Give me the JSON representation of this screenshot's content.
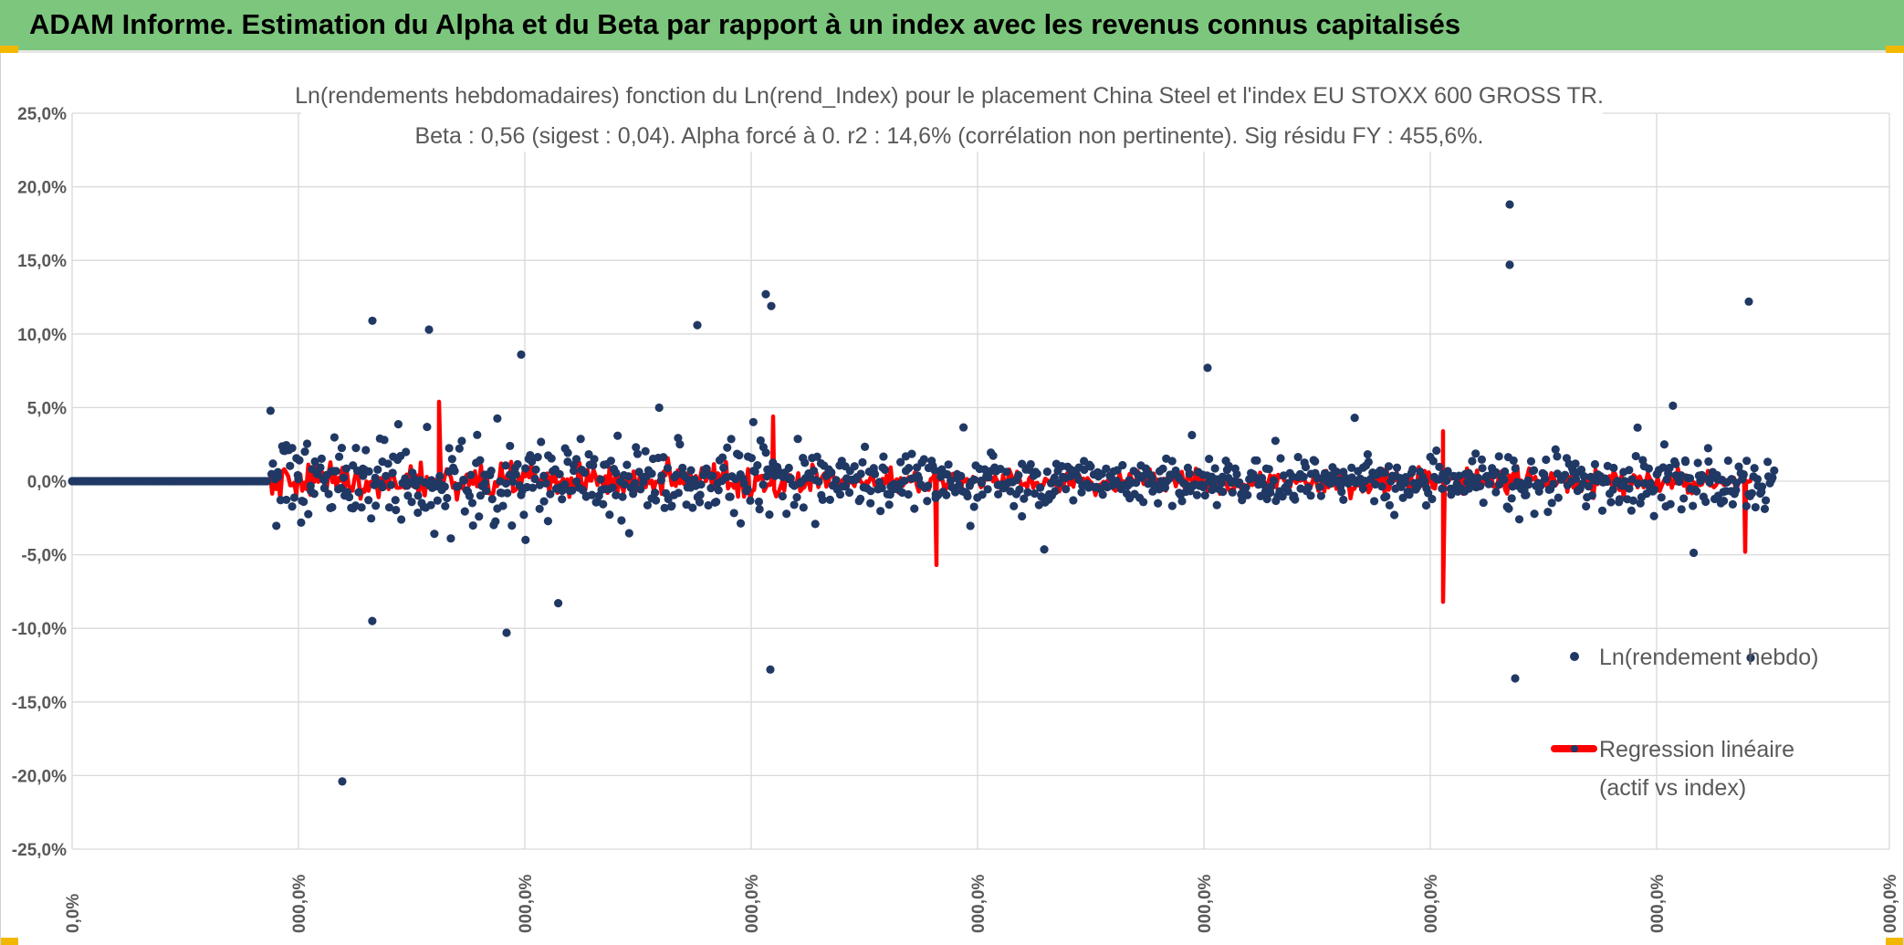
{
  "header": {
    "title": "ADAM Informe. Estimation du Alpha et du Beta par rapport à un index avec les revenus connus capitalisés"
  },
  "colors": {
    "banner": "#7dc67d",
    "accent": "#f2b800",
    "scatter": "#203864",
    "regression": "#ff0000",
    "grid": "#d9d9d9",
    "text": "#595959"
  },
  "chart_data": {
    "type": "scatter",
    "title_line1": "Ln(rendements hebdomadaires) fonction du Ln(rend_Index) pour le placement China Steel  et l'index EU STOXX 600 GROSS TR.",
    "title_line2": "Beta : 0,56 (sigest : 0,04). Alpha forcé à 0. r2 : 14,6% (corrélation non pertinente). Sig résidu FY : 455,6%.",
    "ylim": [
      -25,
      25
    ],
    "y_ticks": [
      "25,0%",
      "20,0%",
      "15,0%",
      "10,0%",
      "5,0%",
      "0,0%",
      "-5,0%",
      "-10,0%",
      "-15,0%",
      "-20,0%",
      "-25,0%"
    ],
    "x_ticks": [
      "0,0%",
      "000,0%",
      "000,0%",
      "000,0%",
      "000,0%",
      "000,0%",
      "000,0%",
      "000,0%",
      "000,0%"
    ],
    "grid": true,
    "legend_position": "right",
    "series": [
      {
        "name": "Ln(rendement hebdo)",
        "type": "scatter",
        "notable_points": [
          {
            "x": 375,
            "y": -20.4
          },
          {
            "x": 408,
            "y": 10.9
          },
          {
            "x": 470,
            "y": 10.3
          },
          {
            "x": 555,
            "y": -10.3
          },
          {
            "x": 571,
            "y": 8.6
          },
          {
            "x": 764,
            "y": 10.6
          },
          {
            "x": 845,
            "y": 11.9
          },
          {
            "x": 839,
            "y": 12.7
          },
          {
            "x": 844,
            "y": -12.8
          },
          {
            "x": 1323,
            "y": 7.7
          },
          {
            "x": 1654,
            "y": 18.8
          },
          {
            "x": 1654,
            "y": 14.7
          },
          {
            "x": 1660,
            "y": -13.4
          },
          {
            "x": 1916,
            "y": 12.2
          },
          {
            "x": 1918,
            "y": -12.0
          }
        ]
      },
      {
        "name": "Regression linéaire\n(actif vs index)",
        "type": "line",
        "notable_points": [
          {
            "x": 481,
            "y": 5.4
          },
          {
            "x": 847,
            "y": 4.4
          },
          {
            "x": 1026,
            "y": -5.7
          },
          {
            "x": 1581,
            "y": 3.4
          },
          {
            "x": 1581,
            "y": -8.2
          },
          {
            "x": 1912,
            "y": -4.8
          }
        ]
      }
    ],
    "legend": [
      {
        "label": "Ln(rendement hebdo)"
      },
      {
        "label_line1": "Regression linéaire",
        "label_line2": "(actif vs index)"
      }
    ]
  }
}
